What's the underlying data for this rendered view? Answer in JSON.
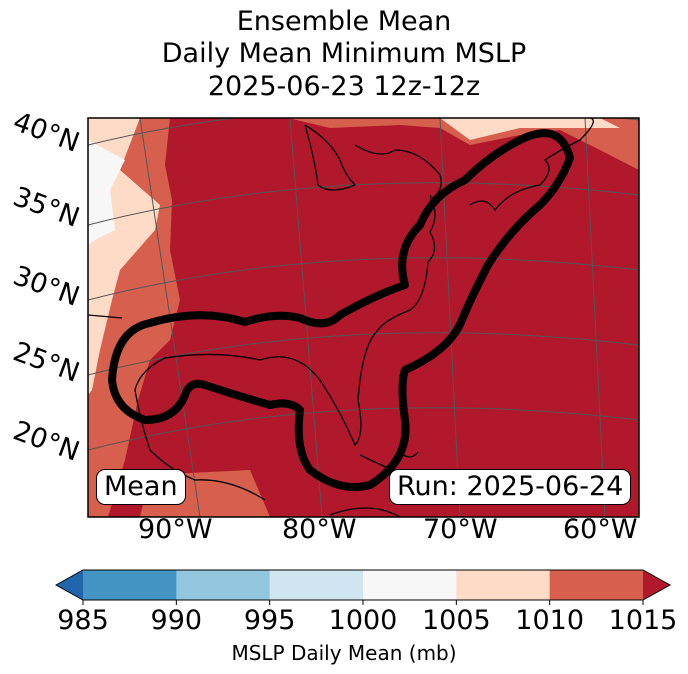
{
  "title": {
    "line1": "Ensemble Mean",
    "line2": "Daily Mean Minimum MSLP",
    "line3": "2025-06-23 12z-12z"
  },
  "map": {
    "latitude_labels": [
      "40°N",
      "35°N",
      "30°N",
      "25°N",
      "20°N"
    ],
    "longitude_labels": [
      "90°W",
      "80°W",
      "70°W",
      "60°W"
    ],
    "left_box": "Mean",
    "right_box": "Run: 2025-06-24",
    "region_outline_color": "#000000"
  },
  "colorbar": {
    "ticks": [
      "985",
      "990",
      "995",
      "1000",
      "1005",
      "1010",
      "1015"
    ],
    "colors": [
      "#2166ac",
      "#4393c3",
      "#92c5de",
      "#d1e5f0",
      "#f7f7f7",
      "#fddbc7",
      "#d6604d",
      "#b2182b"
    ],
    "label": "MSLP Daily Mean (mb)"
  }
}
